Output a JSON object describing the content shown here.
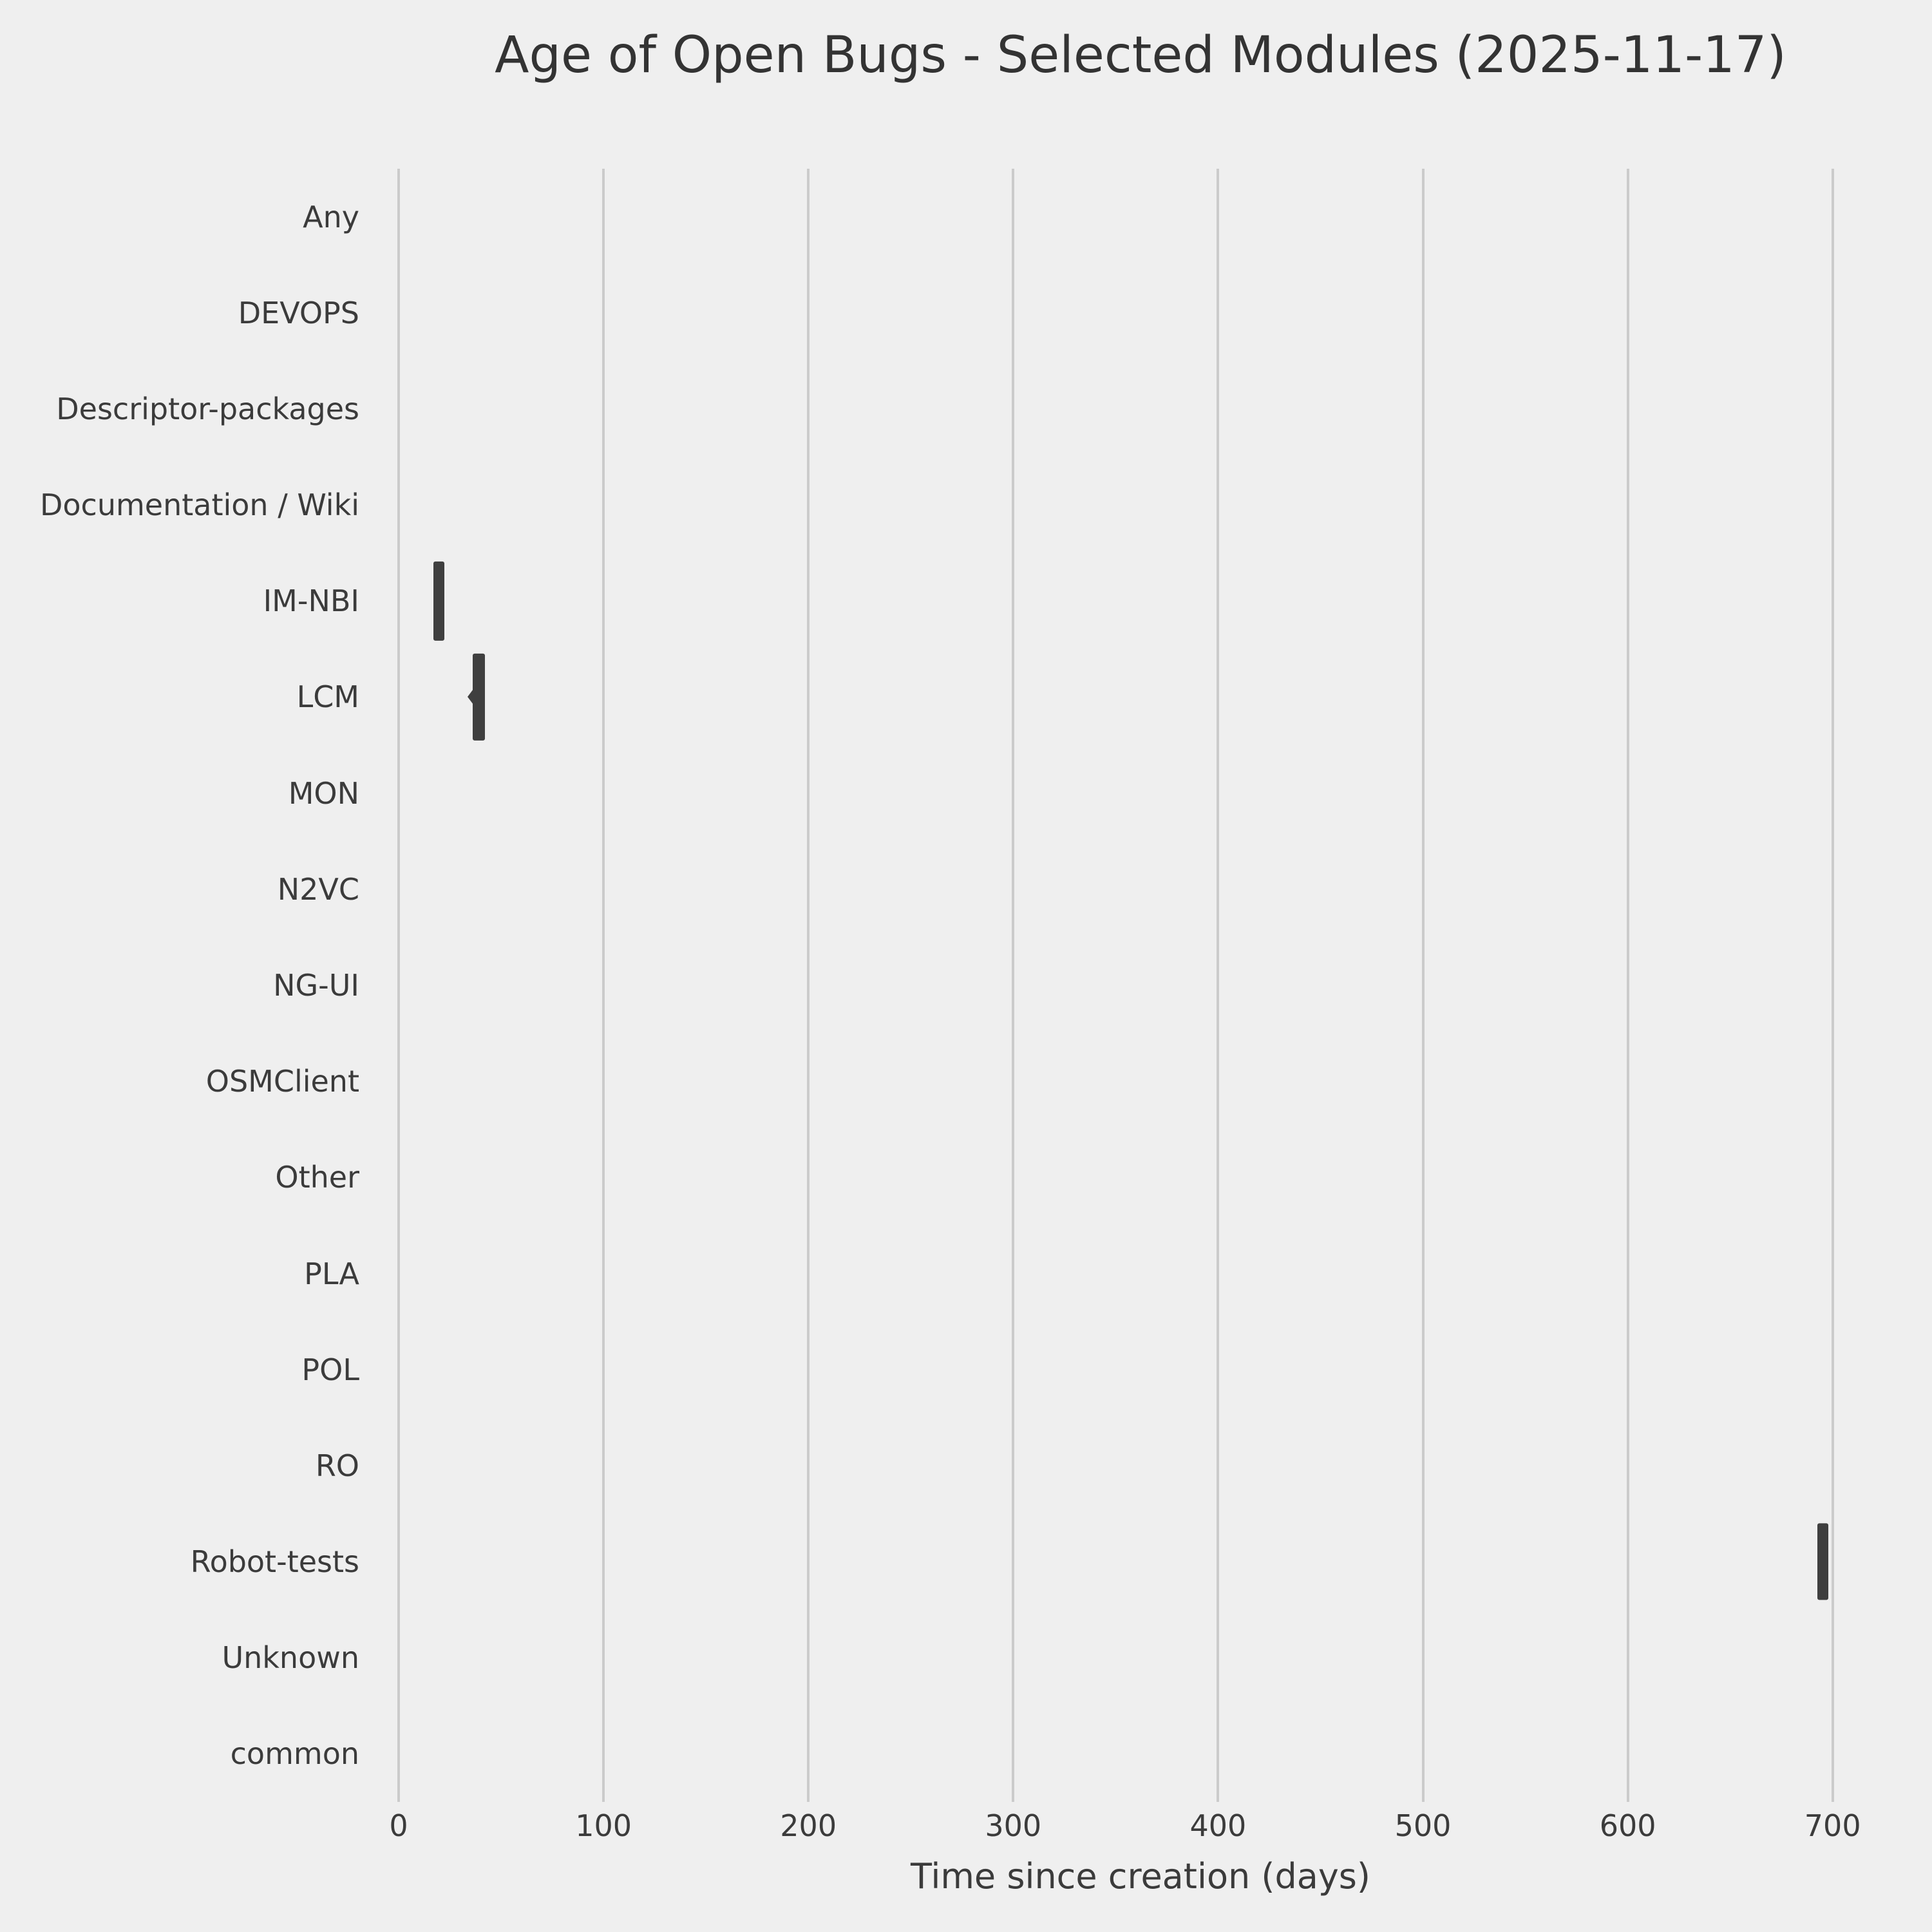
{
  "chart_data": {
    "type": "violin",
    "orientation": "horizontal",
    "title": "Age of Open Bugs - Selected Modules (2025-11-17)",
    "xlabel": "Time since creation (days)",
    "ylabel": "",
    "x_ticks": [
      0,
      100,
      200,
      300,
      400,
      500,
      600,
      700
    ],
    "xlim": [
      0,
      740
    ],
    "grid": "vertical-only",
    "legend": "none",
    "categories": [
      "Any",
      "DEVOPS",
      "Descriptor-packages",
      "Documentation / Wiki",
      "IM-NBI",
      "LCM",
      "MON",
      "N2VC",
      "NG-UI",
      "OSMClient",
      "Other",
      "PLA",
      "POL",
      "RO",
      "Robot-tests",
      "Unknown",
      "common"
    ],
    "violins": [
      null,
      null,
      null,
      null,
      {
        "module": "IM-NBI",
        "min_days": 17,
        "max_days": 22.4,
        "peak_days": null,
        "band_frac": 0.82
      },
      {
        "module": "LCM",
        "min_days": 36.3,
        "max_days": 42.2,
        "peak_days": 38,
        "band_frac": 0.9
      },
      null,
      null,
      null,
      null,
      null,
      null,
      null,
      null,
      {
        "module": "Robot-tests",
        "min_days": 692.7,
        "max_days": 698,
        "peak_days": null,
        "band_frac": 0.8
      },
      null,
      null
    ],
    "colors": {
      "background": "#efefef",
      "grid": "#cbcbcb",
      "violin": "#3f3f3f",
      "text": "#3b3b3b",
      "title": "#333333"
    }
  }
}
